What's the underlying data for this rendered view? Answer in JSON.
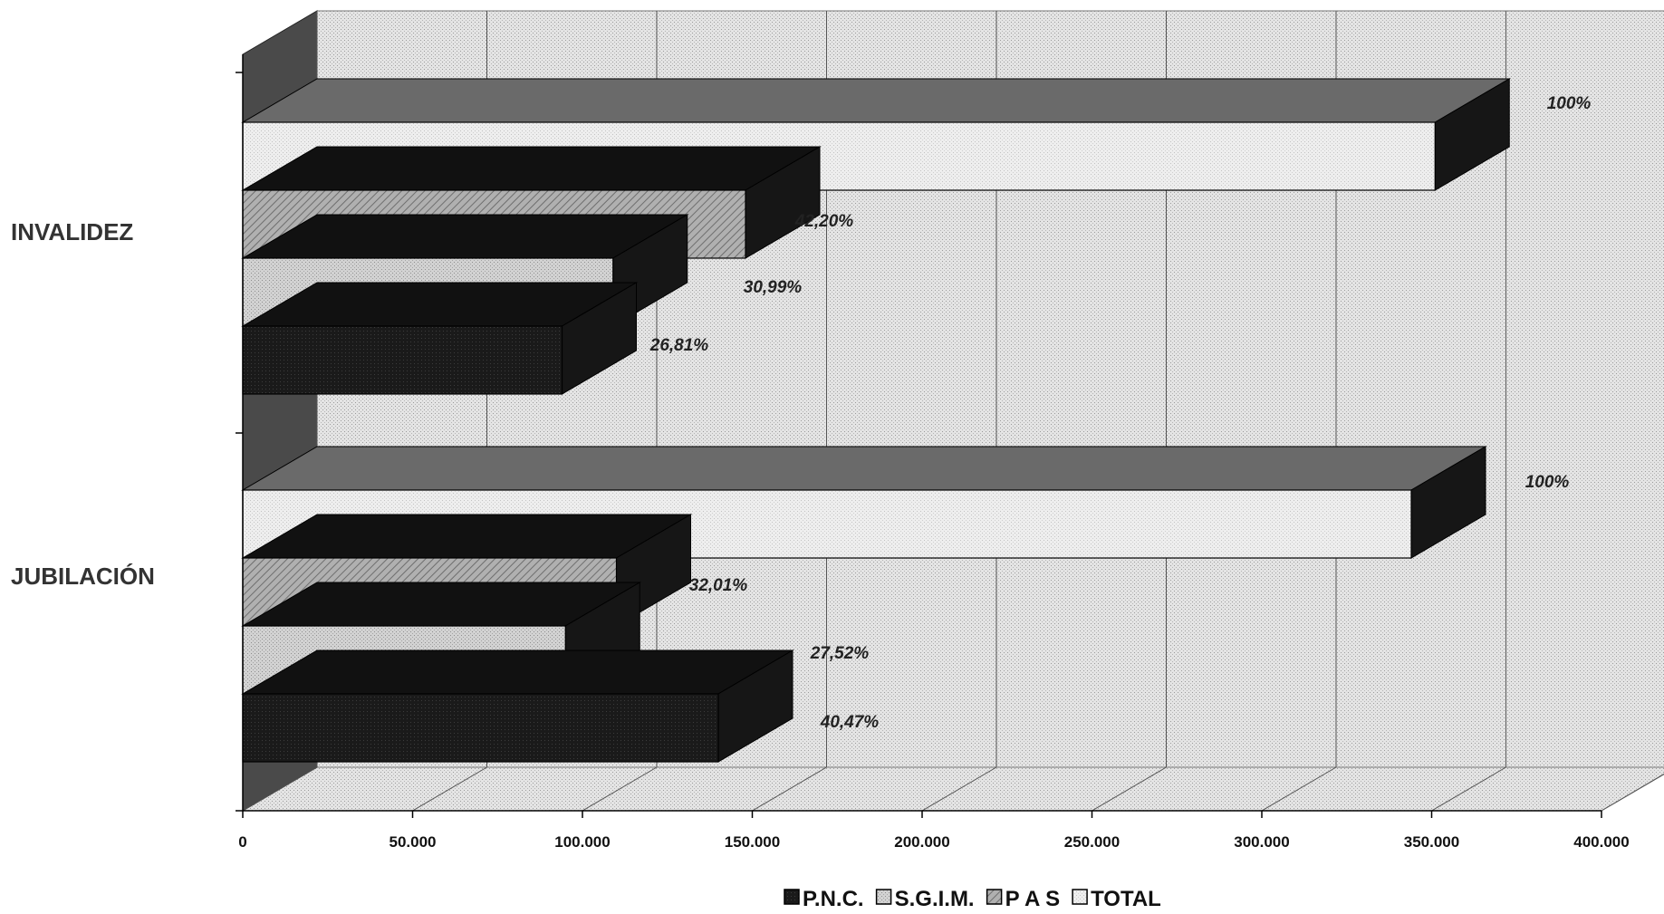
{
  "chart_data": {
    "type": "bar",
    "orientation": "horizontal",
    "three_d": true,
    "categories": [
      "INVALIDEZ",
      "JUBILACIÓN"
    ],
    "series": [
      {
        "name": "P.N.C.",
        "color": "#141414",
        "values": [
          94000,
          140000
        ],
        "labels": [
          "26,81%",
          "40,47%"
        ]
      },
      {
        "name": "S.G.I.M.",
        "color": "#d4d4d4",
        "values": [
          109000,
          95000
        ],
        "labels": [
          "30,99%",
          "27,52%"
        ]
      },
      {
        "name": "P A S",
        "color": "#9e9e9e",
        "values": [
          148000,
          110000
        ],
        "labels": [
          "42,20%",
          "32,01%"
        ]
      },
      {
        "name": "TOTAL",
        "color": "#ececec",
        "values": [
          351000,
          344000
        ],
        "labels": [
          "100%",
          "100%"
        ]
      }
    ],
    "x_ticks": [
      "0",
      "50.000",
      "100.000",
      "150.000",
      "200.000",
      "250.000",
      "300.000",
      "350.000",
      "400.000"
    ],
    "xlim": [
      0,
      400000
    ],
    "grid": true,
    "legend_position": "bottom"
  }
}
